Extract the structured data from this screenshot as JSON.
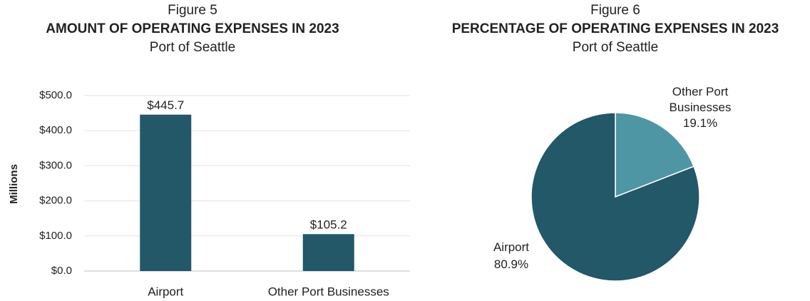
{
  "chart_data": [
    {
      "type": "bar",
      "figure": "Figure 5",
      "title": "AMOUNT OF OPERATING EXPENSES IN 2023",
      "subtitle": "Port of Seattle",
      "y_label": "Millions",
      "categories": [
        "Airport",
        "Other Port Businesses"
      ],
      "values": [
        445.7,
        105.2
      ],
      "value_labels": [
        "$445.7",
        "$105.2"
      ],
      "color": "#225868",
      "ylim": [
        0,
        500
      ],
      "yticks": [
        {
          "value": 0,
          "label": "$0.0"
        },
        {
          "value": 100,
          "label": "$100.0"
        },
        {
          "value": 200,
          "label": "$200.0"
        },
        {
          "value": 300,
          "label": "$300.0"
        },
        {
          "value": 400,
          "label": "$400.0"
        },
        {
          "value": 500,
          "label": "$500.0"
        }
      ],
      "grid": true
    },
    {
      "type": "pie",
      "figure": "Figure 6",
      "title": "PERCENTAGE OF OPERATING EXPENSES IN 2023",
      "subtitle": "Port of Seattle",
      "categories": [
        "Airport",
        "Other Port Businesses"
      ],
      "values": [
        80.9,
        19.1
      ],
      "value_labels": [
        "80.9%",
        "19.1%"
      ],
      "colors": [
        "#225868",
        "#4e96a4"
      ]
    }
  ]
}
